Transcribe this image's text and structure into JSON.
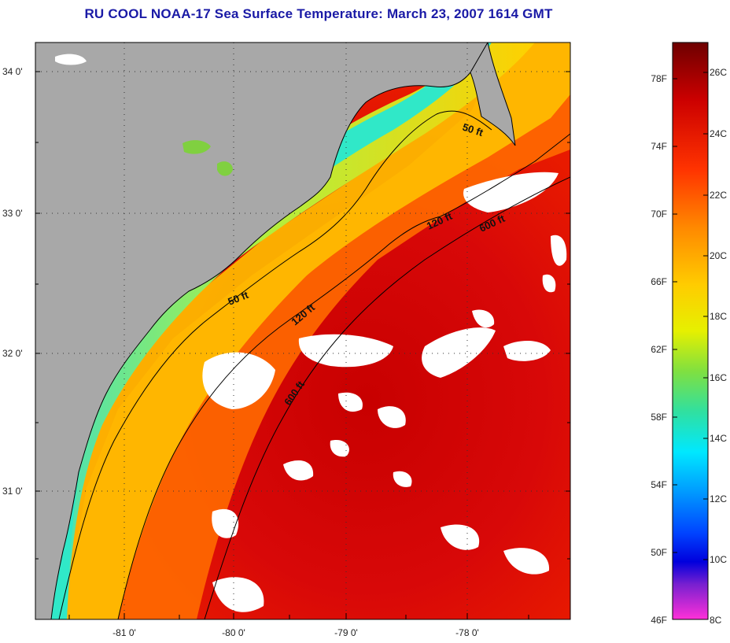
{
  "title": "RU COOL  NOAA-17  Sea Surface Temperature:  March 23, 2007 1614 GMT",
  "map": {
    "lat_ticks": [
      {
        "label": "34 0'",
        "lat": 34.0
      },
      {
        "label": "33 0'",
        "lat": 33.0
      },
      {
        "label": "32 0'",
        "lat": 32.0
      },
      {
        "label": "31 0'",
        "lat": 31.0
      }
    ],
    "lon_ticks": [
      {
        "label": "-81 0'",
        "lon": -81.0
      },
      {
        "label": "-80 0'",
        "lon": -80.0
      },
      {
        "label": "-79 0'",
        "lon": -79.0
      },
      {
        "label": "-78 0'",
        "lon": -78.0
      }
    ],
    "isobaths": [
      "50 ft",
      "50 ft",
      "120 ft",
      "120 ft",
      "600 ft",
      "600 ft"
    ],
    "colors": {
      "land": "#a8a8a8",
      "cloud": "#ffffff",
      "coastline": "#000000",
      "grid": "#333333"
    }
  },
  "colorbar": {
    "fahrenheit": [
      "78F",
      "74F",
      "70F",
      "66F",
      "62F",
      "58F",
      "54F",
      "50F",
      "46F"
    ],
    "celsius": [
      "26C",
      "24C",
      "22C",
      "20C",
      "18C",
      "16C",
      "14C",
      "12C",
      "10C",
      "8C"
    ],
    "gradient": [
      "#6e0000",
      "#cc0000",
      "#ff3300",
      "#ff8800",
      "#ffcc00",
      "#e6f000",
      "#80e040",
      "#30e0a0",
      "#00e8ff",
      "#0099ff",
      "#0044ff",
      "#0000dd",
      "#7a20d0",
      "#ff30d8"
    ]
  }
}
